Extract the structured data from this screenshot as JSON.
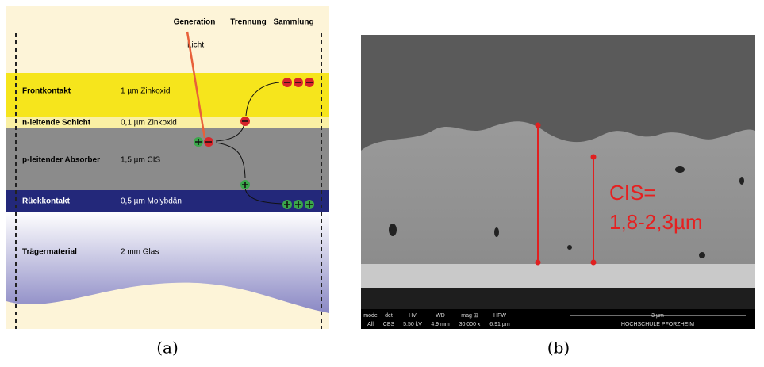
{
  "panel_a": {
    "header": {
      "generation": "Generation",
      "separation": "Trennung",
      "collection": "Sammlung"
    },
    "light_label": "Licht",
    "layers": [
      {
        "name": "Frontkontakt",
        "description": "1 µm Zinkoxid"
      },
      {
        "name": "n-leitende Schicht",
        "description": "0,1 µm Zinkoxid"
      },
      {
        "name": "p-leitender Absorber",
        "description": "1,5 µm CIS"
      },
      {
        "name": "Rückkontakt",
        "description": "0,5 µm Molybdän"
      },
      {
        "name": "Trägermaterial",
        "description": "2 mm Glas"
      }
    ],
    "caption": "(a)"
  },
  "panel_b": {
    "annotation": {
      "line1": "CIS=",
      "line2": "1,8-2,3µm"
    },
    "databar": {
      "labels": [
        "mode",
        "det",
        "HV",
        "WD",
        "mag ⊞",
        "HFW"
      ],
      "values": [
        "All",
        "CBS",
        "5.50 kV",
        "4.9 mm",
        "30 000 x",
        "6.91 µm"
      ],
      "scale": "3 µm",
      "institution": "HOCHSCHULE PFORZHEIM"
    },
    "caption": "(b)"
  }
}
